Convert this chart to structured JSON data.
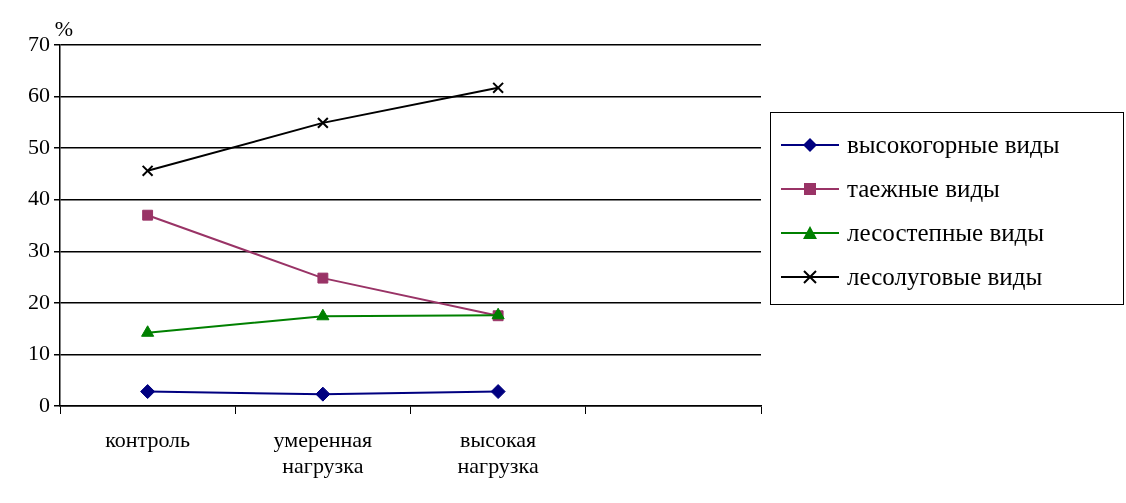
{
  "chart_data": {
    "type": "line",
    "ylabel": "%",
    "categories": [
      "контроль",
      "умеренная нагрузка",
      "высокая нагрузка",
      null
    ],
    "ylim": [
      0,
      70
    ],
    "yticks": [
      0,
      10,
      20,
      30,
      40,
      50,
      60,
      70
    ],
    "grid": "y",
    "legend": "right",
    "line_style": "solid",
    "series": [
      {
        "name": "высокогорные виды",
        "color": "#000080",
        "marker": "diamond",
        "values": [
          2.8,
          2.3,
          2.8,
          null
        ]
      },
      {
        "name": "таежные виды",
        "color": "#993366",
        "marker": "square",
        "values": [
          37,
          24.8,
          17.5,
          null
        ]
      },
      {
        "name": "лесостепные виды",
        "color": "#008000",
        "marker": "triangle",
        "values": [
          14.2,
          17.4,
          17.6,
          null
        ]
      },
      {
        "name": "лесолуговые виды",
        "color": "#000000",
        "marker": "cross",
        "values": [
          45.6,
          54.9,
          61.7,
          null
        ]
      }
    ]
  }
}
